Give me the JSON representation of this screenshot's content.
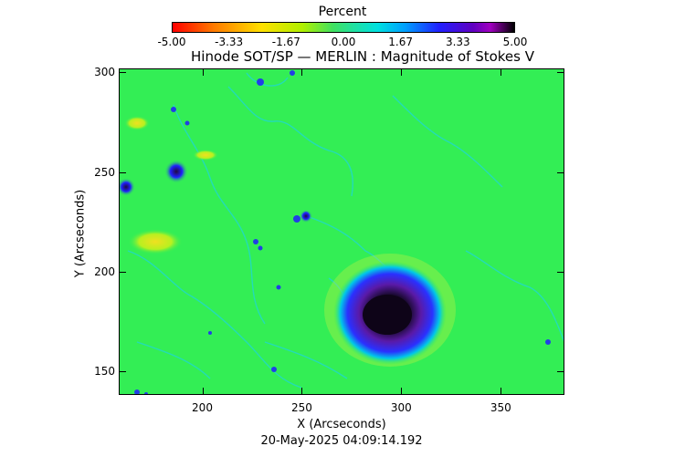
{
  "colorbar": {
    "title": "Percent",
    "ticks": [
      "-5.00",
      "-3.33",
      "-1.67",
      "0.00",
      "1.67",
      "3.33",
      "5.00"
    ],
    "range": [
      -5.0,
      5.0
    ]
  },
  "title": "Hinode SOT/SP — MERLIN : Magnitude of Stokes V",
  "x_axis": {
    "label": "X (Arcseconds)",
    "ticks": [
      "200",
      "250",
      "300",
      "350"
    ],
    "range": [
      158,
      382
    ]
  },
  "y_axis": {
    "label": "Y (Arcseconds)",
    "ticks": [
      "150",
      "200",
      "250",
      "300"
    ],
    "range": [
      138,
      302
    ]
  },
  "timestamp": "20-May-2025 04:09:14.192",
  "colors": {
    "background_field": "#33ee55",
    "umbra": "#1a0a30",
    "penumbra": "#5a1aa8"
  }
}
